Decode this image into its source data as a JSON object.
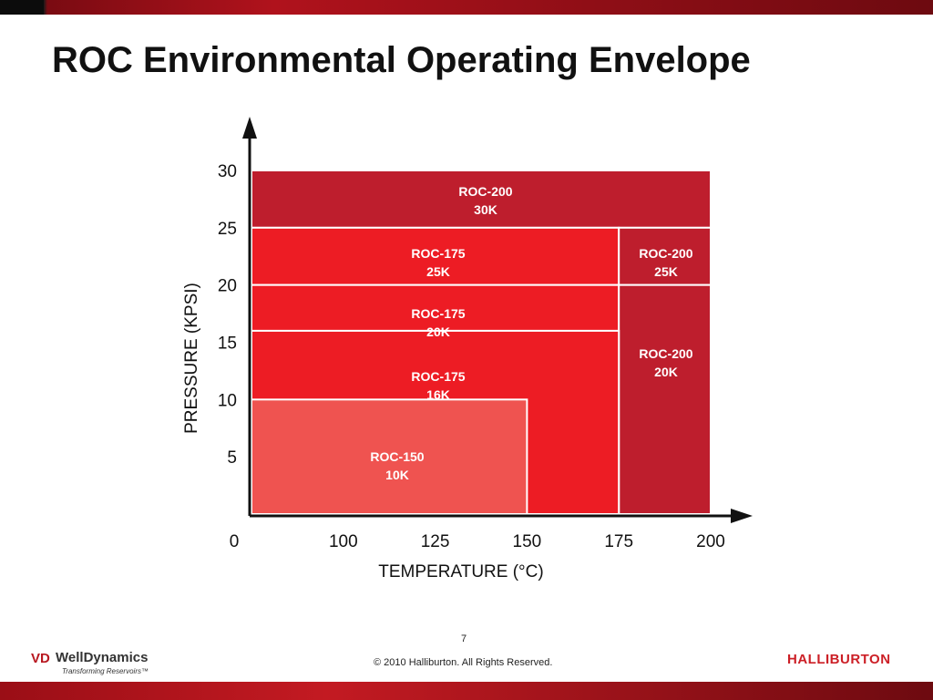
{
  "slide": {
    "title": "ROC Environmental Operating Envelope",
    "page_number": "7",
    "copyright": "© 2010 Halliburton. All Rights Reserved.",
    "logo_left": {
      "mark": "VD",
      "name": "WellDynamics",
      "tagline": "Transforming Reservoirs™"
    },
    "logo_right": "HALLIBURTON"
  },
  "colors": {
    "dark_red": "#be1e2d",
    "bright_red": "#ed1c24",
    "light_red": "#ef5350",
    "top_band": "#a3121b",
    "bottom_band": "#b3141d"
  },
  "chart_data": {
    "type": "area",
    "xlabel": "TEMPERATURE (°C)",
    "ylabel": "PRESSURE (KPSI)",
    "x_tick_labels": [
      "0",
      "100",
      "125",
      "150",
      "175",
      "200"
    ],
    "y_tick_labels": [
      "5",
      "10",
      "15",
      "20",
      "25",
      "30"
    ],
    "xlim": [
      75,
      200
    ],
    "ylim": [
      0,
      30
    ],
    "regions": [
      {
        "name": "ROC-200",
        "rating": "30K",
        "x": [
          75,
          200
        ],
        "y": [
          25,
          30
        ],
        "color": "#be1e2d"
      },
      {
        "name": "ROC-175",
        "rating": "25K",
        "x": [
          75,
          175
        ],
        "y": [
          20,
          25
        ],
        "color": "#ed1c24"
      },
      {
        "name": "ROC-200",
        "rating": "25K",
        "x": [
          175,
          200
        ],
        "y": [
          20,
          25
        ],
        "color": "#be1e2d"
      },
      {
        "name": "ROC-175",
        "rating": "20K",
        "x": [
          75,
          175
        ],
        "y": [
          16,
          20
        ],
        "color": "#ed1c24"
      },
      {
        "name": "ROC-200",
        "rating": "20K",
        "x": [
          175,
          200
        ],
        "y": [
          0,
          20
        ],
        "color": "#be1e2d"
      },
      {
        "name": "ROC-175",
        "rating": "16K",
        "x": [
          75,
          175
        ],
        "y": [
          0,
          16
        ],
        "color": "#ed1c24"
      },
      {
        "name": "ROC-150",
        "rating": "10K",
        "x": [
          75,
          150
        ],
        "y": [
          0,
          10
        ],
        "color": "#ef5350"
      }
    ]
  }
}
